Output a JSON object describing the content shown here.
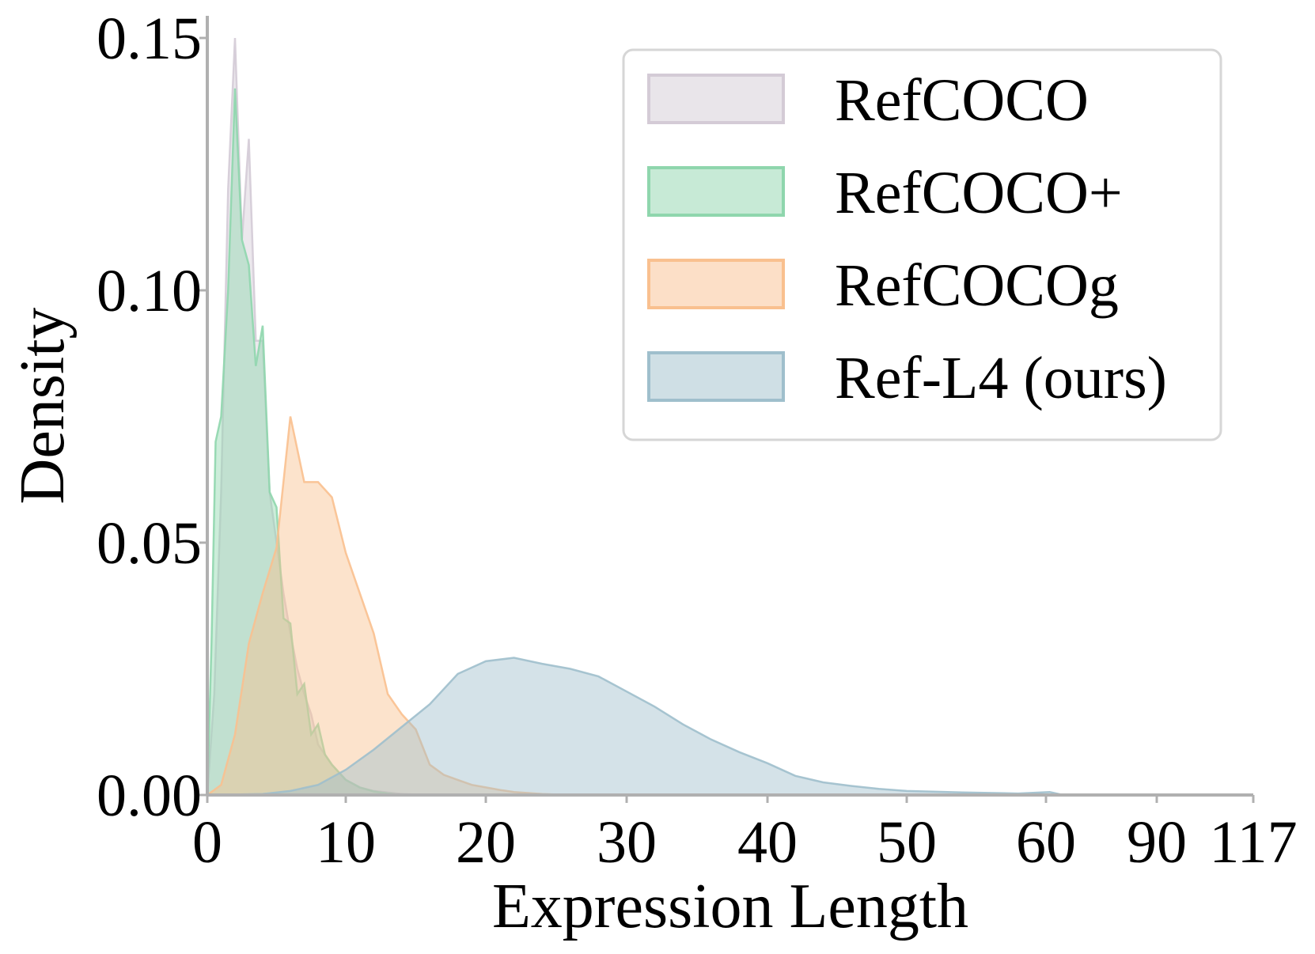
{
  "chart_data": {
    "type": "area",
    "title": "",
    "xlabel": "Expression Length",
    "ylabel": "Density",
    "ylim": [
      0,
      0.15
    ],
    "x_ticks": [
      "0",
      "10",
      "20",
      "30",
      "40",
      "50",
      "60",
      "90",
      "117"
    ],
    "x_tick_values": [
      0,
      10,
      20,
      30,
      40,
      50,
      60,
      90,
      117
    ],
    "y_ticks": [
      "0.00",
      "0.05",
      "0.10",
      "0.15"
    ],
    "y_tick_values": [
      0,
      0.05,
      0.1,
      0.15
    ],
    "legend_position": "top-right",
    "grid": false,
    "series": [
      {
        "name": "RefCOCO",
        "color": "#d4cbd6",
        "x": [
          0,
          0.5,
          1,
          1.5,
          2,
          2.5,
          3,
          3.5,
          4,
          4.5,
          5,
          5.5,
          6,
          6.5,
          7,
          7.5,
          8,
          9,
          10,
          11,
          12,
          14,
          16
        ],
        "y": [
          0,
          0.02,
          0.06,
          0.12,
          0.15,
          0.11,
          0.13,
          0.09,
          0.09,
          0.06,
          0.05,
          0.04,
          0.032,
          0.025,
          0.02,
          0.016,
          0.01,
          0.006,
          0.003,
          0.0015,
          0.0008,
          0.0002,
          0
        ]
      },
      {
        "name": "RefCOCO+",
        "color": "#8fd6ad",
        "x": [
          0,
          0.3,
          0.6,
          1,
          1.5,
          2,
          2.5,
          3,
          3.5,
          4,
          4.5,
          5,
          5.5,
          6,
          6.5,
          7,
          7.5,
          8,
          8.5,
          9,
          10,
          11,
          12,
          13,
          14
        ],
        "y": [
          0,
          0.03,
          0.07,
          0.075,
          0.1,
          0.14,
          0.11,
          0.105,
          0.085,
          0.093,
          0.06,
          0.057,
          0.035,
          0.034,
          0.02,
          0.022,
          0.012,
          0.014,
          0.008,
          0.006,
          0.003,
          0.0015,
          0.0007,
          0.0003,
          0
        ]
      },
      {
        "name": "RefCOCOg",
        "color": "#f9c08f",
        "x": [
          0,
          1,
          2,
          3,
          4,
          5,
          6,
          7,
          8,
          9,
          10,
          11,
          12,
          13,
          14,
          15,
          16,
          17,
          18,
          19,
          20,
          21,
          22,
          24,
          26
        ],
        "y": [
          0,
          0.002,
          0.012,
          0.03,
          0.04,
          0.049,
          0.075,
          0.062,
          0.062,
          0.059,
          0.048,
          0.04,
          0.032,
          0.02,
          0.016,
          0.013,
          0.006,
          0.004,
          0.003,
          0.002,
          0.0015,
          0.001,
          0.0006,
          0.0002,
          0
        ]
      },
      {
        "name": "Ref-L4 (ours)",
        "color": "#9fbfcc",
        "x": [
          0,
          4,
          6,
          8,
          10,
          12,
          14,
          16,
          18,
          20,
          22,
          24,
          26,
          28,
          30,
          32,
          34,
          36,
          38,
          40,
          42,
          44,
          46,
          48,
          50,
          54,
          58,
          61,
          64,
          90,
          117
        ],
        "y": [
          0,
          0.0002,
          0.0008,
          0.002,
          0.005,
          0.009,
          0.0135,
          0.018,
          0.024,
          0.0265,
          0.0272,
          0.026,
          0.025,
          0.0235,
          0.0205,
          0.0175,
          0.014,
          0.011,
          0.0085,
          0.0063,
          0.0038,
          0.0025,
          0.0018,
          0.0012,
          0.0008,
          0.0005,
          0.0003,
          0.0006,
          0.0001,
          0,
          0
        ]
      }
    ]
  }
}
